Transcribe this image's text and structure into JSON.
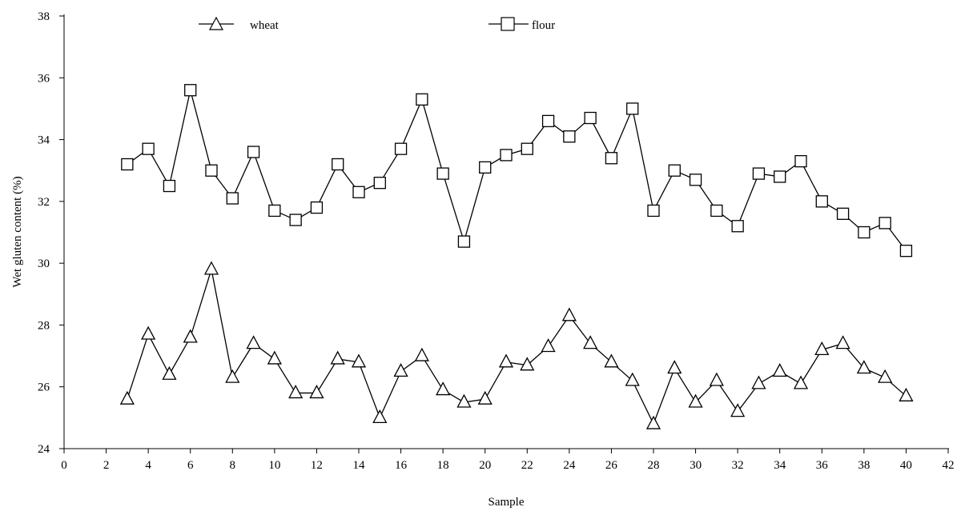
{
  "chart_data": {
    "type": "line",
    "xlabel": "Sample",
    "ylabel": "Wet gluten content (%)",
    "xlim": [
      0,
      42
    ],
    "ylim": [
      24,
      38
    ],
    "xticks": [
      0,
      2,
      4,
      6,
      8,
      10,
      12,
      14,
      16,
      18,
      20,
      22,
      24,
      26,
      28,
      30,
      32,
      34,
      36,
      38,
      40,
      42
    ],
    "yticks": [
      24,
      26,
      28,
      30,
      32,
      34,
      36,
      38
    ],
    "grid": false,
    "legend": "top",
    "colors": {
      "line": "#000000",
      "marker_fill": "#ffffff"
    },
    "x": [
      3,
      4,
      5,
      6,
      7,
      8,
      9,
      10,
      11,
      12,
      13,
      14,
      15,
      16,
      17,
      18,
      19,
      20,
      21,
      22,
      23,
      24,
      25,
      26,
      27,
      28,
      29,
      30,
      31,
      32,
      33,
      34,
      35,
      36,
      37,
      38,
      39,
      40
    ],
    "series": [
      {
        "name": "wheat",
        "marker": "triangle",
        "values": [
          25.6,
          27.7,
          26.4,
          27.6,
          29.8,
          26.3,
          27.4,
          26.9,
          25.8,
          25.8,
          26.9,
          26.8,
          25.0,
          26.5,
          27.0,
          25.9,
          25.5,
          25.6,
          26.8,
          26.7,
          27.3,
          28.3,
          27.4,
          26.8,
          26.2,
          24.8,
          26.6,
          25.5,
          26.2,
          25.2,
          26.1,
          26.5,
          26.1,
          27.2,
          27.4,
          26.6,
          26.3,
          25.7
        ]
      },
      {
        "name": "flour",
        "marker": "square",
        "values": [
          33.2,
          33.7,
          32.5,
          35.6,
          33.0,
          32.1,
          33.6,
          31.7,
          31.4,
          31.8,
          33.2,
          32.3,
          32.6,
          33.7,
          35.3,
          32.9,
          30.7,
          33.1,
          33.5,
          33.7,
          34.6,
          34.1,
          34.7,
          33.4,
          35.0,
          31.7,
          33.0,
          32.7,
          31.7,
          31.2,
          32.9,
          32.8,
          33.3,
          32.0,
          31.6,
          31.0,
          31.3,
          30.4
        ]
      }
    ]
  }
}
